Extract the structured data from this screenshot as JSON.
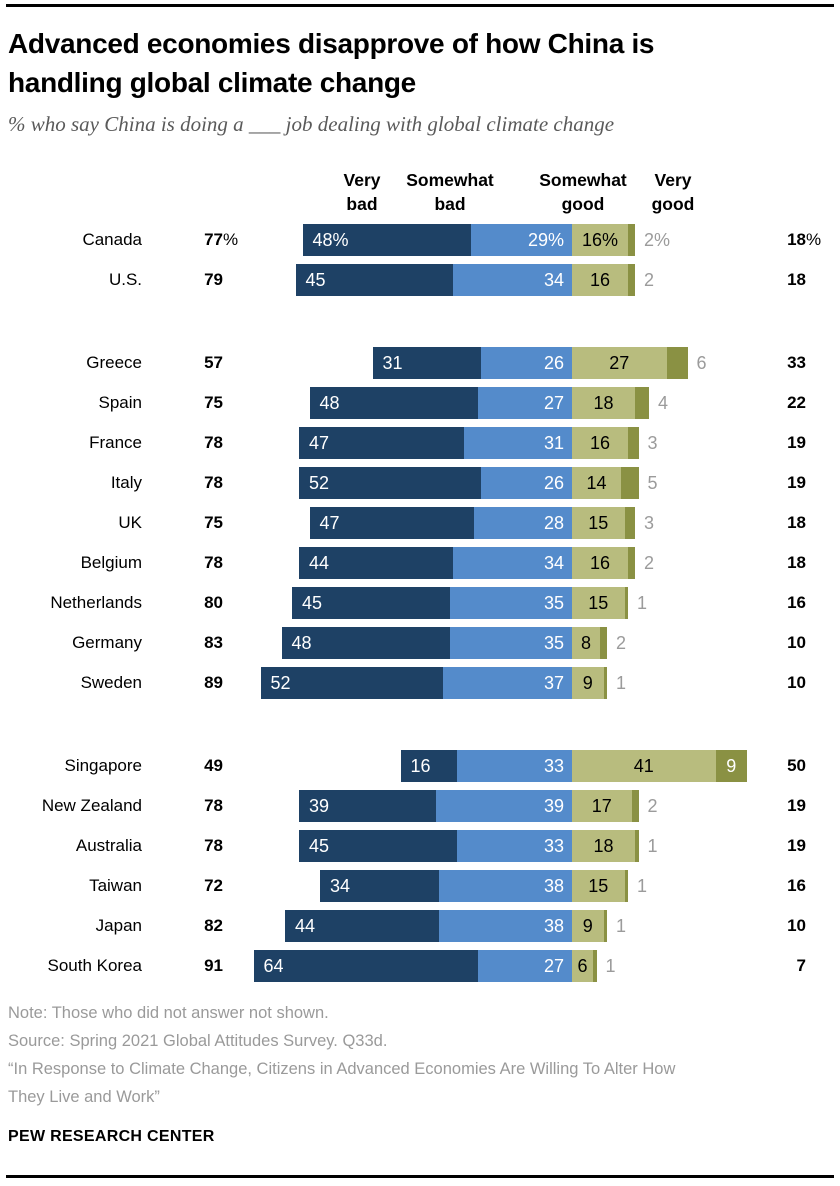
{
  "header": {
    "title_line1": "Advanced economies disapprove of how China is",
    "title_line2": "handling global climate change",
    "subtitle": "% who say China is doing a ___ job dealing with global climate change"
  },
  "column_headers": [
    {
      "line1": "Very",
      "line2": "bad"
    },
    {
      "line1": "Somewhat",
      "line2": "bad"
    },
    {
      "line1": "Somewhat",
      "line2": "good"
    },
    {
      "line1": "Very",
      "line2": "good"
    }
  ],
  "chart_data": {
    "type": "bar",
    "orientation": "horizontal",
    "stacked": true,
    "diverging": true,
    "unit": "%",
    "title": "Advanced economies disapprove of how China is handling global climate change",
    "subtitle": "% who say China is doing a ___ job dealing with global climate change",
    "categories": [
      "Very bad",
      "Somewhat bad",
      "Somewhat good",
      "Very good"
    ],
    "colors": {
      "very_bad": "#1e4165",
      "somewhat_bad": "#548bcb",
      "somewhat_good": "#b8bc7e",
      "very_good": "#8a9143",
      "outside_label": "#9b9b9b"
    },
    "groups": [
      [
        {
          "country": "Canada",
          "total_bad": 77,
          "very_bad": 48,
          "somewhat_bad": 29,
          "somewhat_good": 16,
          "very_good": 2,
          "total_good": 18,
          "percent_signs": true
        },
        {
          "country": "U.S.",
          "total_bad": 79,
          "very_bad": 45,
          "somewhat_bad": 34,
          "somewhat_good": 16,
          "very_good": 2,
          "total_good": 18
        }
      ],
      [
        {
          "country": "Greece",
          "total_bad": 57,
          "very_bad": 31,
          "somewhat_bad": 26,
          "somewhat_good": 27,
          "very_good": 6,
          "total_good": 33
        },
        {
          "country": "Spain",
          "total_bad": 75,
          "very_bad": 48,
          "somewhat_bad": 27,
          "somewhat_good": 18,
          "very_good": 4,
          "total_good": 22
        },
        {
          "country": "France",
          "total_bad": 78,
          "very_bad": 47,
          "somewhat_bad": 31,
          "somewhat_good": 16,
          "very_good": 3,
          "total_good": 19
        },
        {
          "country": "Italy",
          "total_bad": 78,
          "very_bad": 52,
          "somewhat_bad": 26,
          "somewhat_good": 14,
          "very_good": 5,
          "total_good": 19
        },
        {
          "country": "UK",
          "total_bad": 75,
          "very_bad": 47,
          "somewhat_bad": 28,
          "somewhat_good": 15,
          "very_good": 3,
          "total_good": 18
        },
        {
          "country": "Belgium",
          "total_bad": 78,
          "very_bad": 44,
          "somewhat_bad": 34,
          "somewhat_good": 16,
          "very_good": 2,
          "total_good": 18
        },
        {
          "country": "Netherlands",
          "total_bad": 80,
          "very_bad": 45,
          "somewhat_bad": 35,
          "somewhat_good": 15,
          "very_good": 1,
          "total_good": 16
        },
        {
          "country": "Germany",
          "total_bad": 83,
          "very_bad": 48,
          "somewhat_bad": 35,
          "somewhat_good": 8,
          "very_good": 2,
          "total_good": 10
        },
        {
          "country": "Sweden",
          "total_bad": 89,
          "very_bad": 52,
          "somewhat_bad": 37,
          "somewhat_good": 9,
          "very_good": 1,
          "total_good": 10
        }
      ],
      [
        {
          "country": "Singapore",
          "total_bad": 49,
          "very_bad": 16,
          "somewhat_bad": 33,
          "somewhat_good": 41,
          "very_good": 9,
          "total_good": 50,
          "very_good_label_inside": true
        },
        {
          "country": "New Zealand",
          "total_bad": 78,
          "very_bad": 39,
          "somewhat_bad": 39,
          "somewhat_good": 17,
          "very_good": 2,
          "total_good": 19
        },
        {
          "country": "Australia",
          "total_bad": 78,
          "very_bad": 45,
          "somewhat_bad": 33,
          "somewhat_good": 18,
          "very_good": 1,
          "total_good": 19
        },
        {
          "country": "Taiwan",
          "total_bad": 72,
          "very_bad": 34,
          "somewhat_bad": 38,
          "somewhat_good": 15,
          "very_good": 1,
          "total_good": 16
        },
        {
          "country": "Japan",
          "total_bad": 82,
          "very_bad": 44,
          "somewhat_bad": 38,
          "somewhat_good": 9,
          "very_good": 1,
          "total_good": 10
        },
        {
          "country": "South Korea",
          "total_bad": 91,
          "very_bad": 64,
          "somewhat_bad": 27,
          "somewhat_good": 6,
          "very_good": 1,
          "total_good": 7
        }
      ]
    ]
  },
  "footer": {
    "note": "Note: Those who did not answer not shown.",
    "source": "Source: Spring 2021 Global Attitudes Survey. Q33d.",
    "quote_line1": "“In Response to Climate Change, Citizens in Advanced Economies Are Willing To Alter How",
    "quote_line2": "They Live and Work”",
    "brand": "PEW RESEARCH CENTER"
  }
}
